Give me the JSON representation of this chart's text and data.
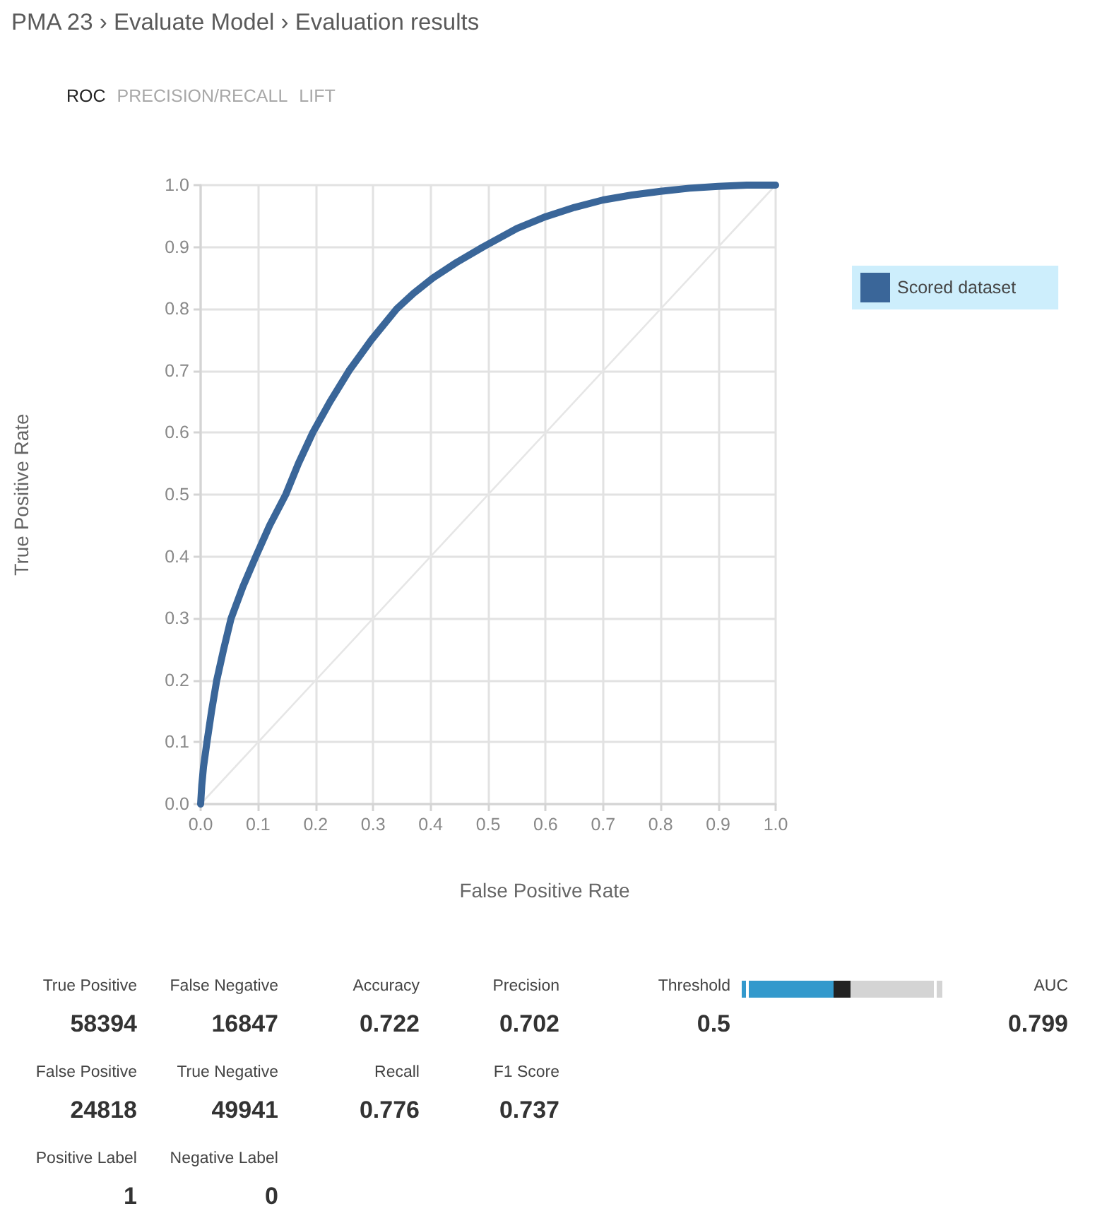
{
  "chart_data": [
    {
      "type": "line",
      "title": "PMA 23 › Evaluate Model › Evaluation results",
      "annotations": [
        "ROC",
        "PRECISION/RECALL",
        "LIFT"
      ],
      "xlabel": "False Positive Rate",
      "ylabel": "True Positive Rate",
      "series": [
        {
          "name": "Scored dataset",
          "color": "#3a6699",
          "x": [
            0,
            0.002,
            0.005,
            0.011,
            0.019,
            0.028,
            0.04,
            0.053,
            0.073,
            0.096,
            0.12,
            0.148,
            0.17,
            0.195,
            0.225,
            0.258,
            0.297,
            0.341,
            0.37,
            0.404,
            0.445,
            0.491,
            0.55,
            0.6,
            0.65,
            0.7,
            0.75,
            0.8,
            0.85,
            0.9,
            0.95,
            1
          ],
          "values": [
            0,
            0.03,
            0.06,
            0.1,
            0.15,
            0.2,
            0.25,
            0.3,
            0.35,
            0.4,
            0.45,
            0.5,
            0.55,
            0.6,
            0.65,
            0.7,
            0.75,
            0.8,
            0.825,
            0.85,
            0.875,
            0.9,
            0.93,
            0.949,
            0.964,
            0.976,
            0.984,
            0.99,
            0.995,
            0.998,
            1,
            1
          ]
        },
        {
          "color": "#e6e6e6",
          "x": [
            0,
            1
          ],
          "values": [
            0,
            1
          ]
        }
      ],
      "xlim": [
        0,
        1
      ],
      "ylim": [
        0,
        1
      ],
      "xticks": [
        {
          "value": 0,
          "label": "0.0"
        },
        0.1,
        0.2,
        0.3,
        0.4,
        0.5,
        0.6,
        0.7,
        0.8,
        0.9,
        {
          "value": 1,
          "label": "1.0"
        }
      ],
      "yticks": [
        {
          "value": 0,
          "label": "0.0"
        },
        0.1,
        0.2,
        0.3,
        0.4,
        0.5,
        0.6,
        0.7,
        0.8,
        0.9,
        {
          "value": 1,
          "label": "1.0"
        }
      ],
      "grid": true,
      "legend": "top right",
      "marker": "none",
      "line_style": "solid"
    },
    {
      "type": "other",
      "categories": [
        "True Positive",
        "False Negative",
        "Accuracy",
        "Precision",
        "Threshold",
        "AUC",
        "False Positive",
        "True Negative",
        "Recall",
        "F1 Score",
        null,
        null,
        "Positive Label",
        "Negative Label"
      ],
      "values": [
        58394,
        16847,
        0.722,
        0.702,
        0.5,
        0.799,
        24818,
        49941,
        0.776,
        0.737,
        null,
        null,
        1,
        0
      ],
      "data_labels": true
    }
  ]
}
